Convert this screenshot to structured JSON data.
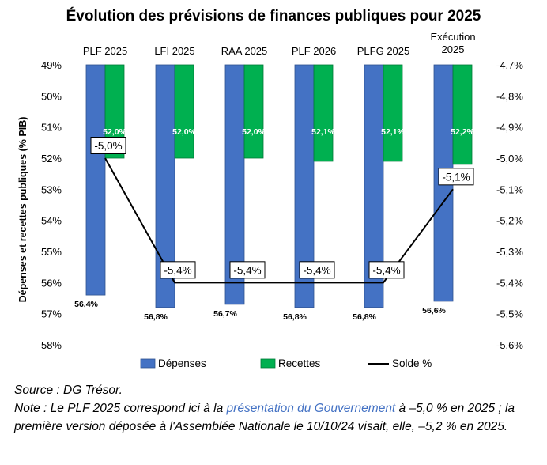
{
  "chart_data": {
    "type": "bar",
    "title": "Évolution des prévisions de finances publiques pour 2025",
    "categories": [
      "PLF 2025",
      "LFI 2025",
      "RAA 2025",
      "PLF 2026",
      "PLFG 2025",
      "Exécution 2025"
    ],
    "category_lines": [
      [
        "PLF 2025"
      ],
      [
        "LFI 2025"
      ],
      [
        "RAA 2025"
      ],
      [
        "PLF 2026"
      ],
      [
        "PLFG 2025"
      ],
      [
        "Exécution",
        "2025"
      ]
    ],
    "ylabel": "Dépenses et recettes publiques (% PIB)",
    "y_left": {
      "min": 49,
      "max": 58,
      "inverted": true,
      "ticks": [
        "49%",
        "50%",
        "51%",
        "52%",
        "53%",
        "54%",
        "55%",
        "56%",
        "57%",
        "58%"
      ]
    },
    "y_right": {
      "min": -4.7,
      "max": -5.6,
      "ticks": [
        "-4,7%",
        "-4,8%",
        "-4,9%",
        "-5,0%",
        "-5,1%",
        "-5,2%",
        "-5,3%",
        "-5,4%",
        "-5,5%",
        "-5,6%"
      ]
    },
    "series": [
      {
        "name": "Dépenses",
        "color": "#4472c4",
        "axis": "left",
        "values": [
          56.4,
          56.8,
          56.7,
          56.8,
          56.8,
          56.6
        ],
        "labels": [
          "56,4%",
          "56,8%",
          "56,7%",
          "56,8%",
          "56,8%",
          "56,6%"
        ]
      },
      {
        "name": "Recettes",
        "color": "#00b050",
        "axis": "left",
        "values": [
          52.0,
          52.0,
          52.0,
          52.1,
          52.1,
          52.2
        ],
        "labels": [
          "52,0%",
          "52,0%",
          "52,0%",
          "52,1%",
          "52,1%",
          "52,2%"
        ]
      },
      {
        "name": "Solde %",
        "color": "#000000",
        "axis": "right",
        "type": "line",
        "values": [
          -5.0,
          -5.4,
          -5.4,
          -5.4,
          -5.4,
          -5.1
        ],
        "labels": [
          "-5,0%",
          "-5,4%",
          "-5,4%",
          "-5,4%",
          "-5,4%",
          "-5,1%"
        ]
      }
    ],
    "legend_position": "bottom",
    "grid": false
  },
  "notes": {
    "source": "Source : DG Trésor.",
    "note_prefix": "Note : Le PLF 2025 correspond ici à la ",
    "note_link": "présentation du Gouvernement",
    "note_suffix": " à –5,0 % en 2025 ; la première version déposée à l'Assemblée Nationale le 10/10/24 visait, elle, –5,2 % en 2025."
  }
}
